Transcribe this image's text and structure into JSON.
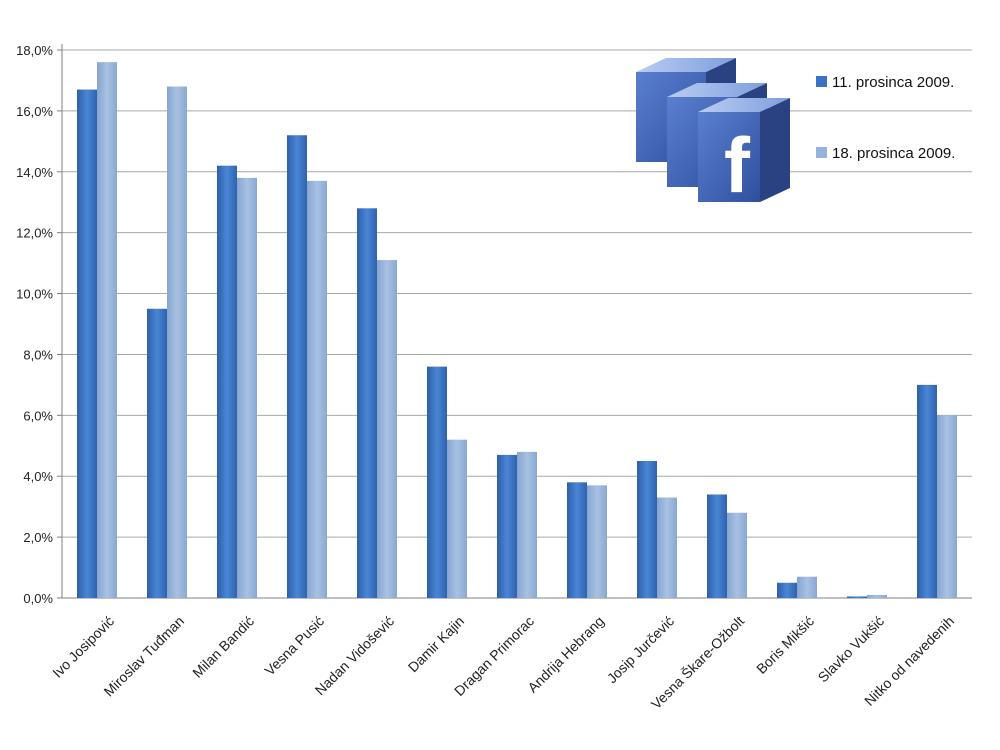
{
  "chart_data": {
    "type": "bar",
    "categories": [
      "Ivo Josipović",
      "Miroslav Tuđman",
      "Milan Bandić",
      "Vesna Pusić",
      "Nadan Vidošević",
      "Damir Kajin",
      "Dragan Primorac",
      "Andrija Hebrang",
      "Josip Jurčević",
      "Vesna Škare-Ožbolt",
      "Boris Mikšić",
      "Slavko Vukšić",
      "Nitko od navedenih"
    ],
    "series": [
      {
        "name": "11. prosinca 2009.",
        "color": "#3a73c4",
        "values": [
          16.7,
          9.5,
          14.2,
          15.2,
          12.8,
          7.6,
          4.7,
          3.8,
          4.5,
          3.4,
          0.5,
          0.05,
          7.0
        ]
      },
      {
        "name": "18. prosinca 2009.",
        "color": "#97b3db",
        "values": [
          17.6,
          16.8,
          13.8,
          13.7,
          11.1,
          5.2,
          4.8,
          3.7,
          3.3,
          2.8,
          0.7,
          0.1,
          6.0
        ]
      }
    ],
    "yticks": [
      "0,0%",
      "2,0%",
      "4,0%",
      "6,0%",
      "8,0%",
      "10,0%",
      "12,0%",
      "14,0%",
      "16,0%",
      "18,0%"
    ],
    "ylim": [
      0,
      18
    ],
    "grid": true,
    "legend_position": "top-right",
    "logo_icon": "facebook-logo-icon"
  }
}
